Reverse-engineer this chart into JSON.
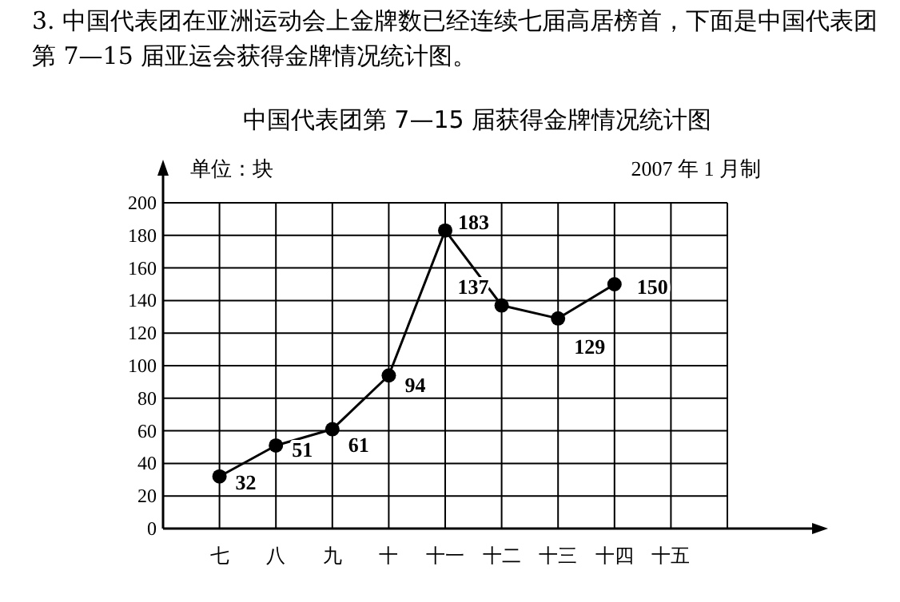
{
  "chart_data": {
    "type": "line",
    "title": "中国代表团第 7—15 届获得金牌情况统计图",
    "ylabel": "单位：块",
    "annotations": [
      "3. 中国代表团在亚洲运动会上金牌数已经连续七届高居榜首，下面是中国代表团第 7—15 届亚运会获得金牌情况统计图。",
      "2007 年 1 月制"
    ],
    "categories": [
      "七",
      "八",
      "九",
      "十",
      "十一",
      "十二",
      "十三",
      "十四",
      "十五"
    ],
    "series": [
      {
        "color": "#000000",
        "values": [
          32,
          51,
          61,
          94,
          183,
          137,
          129,
          150,
          null
        ]
      }
    ],
    "ylim": [
      0,
      200
    ],
    "yticks": [
      0,
      20,
      40,
      60,
      80,
      100,
      120,
      140,
      160,
      180,
      200
    ],
    "grid": true,
    "marker": "circle",
    "line_style": "solid",
    "data_labels": true
  }
}
